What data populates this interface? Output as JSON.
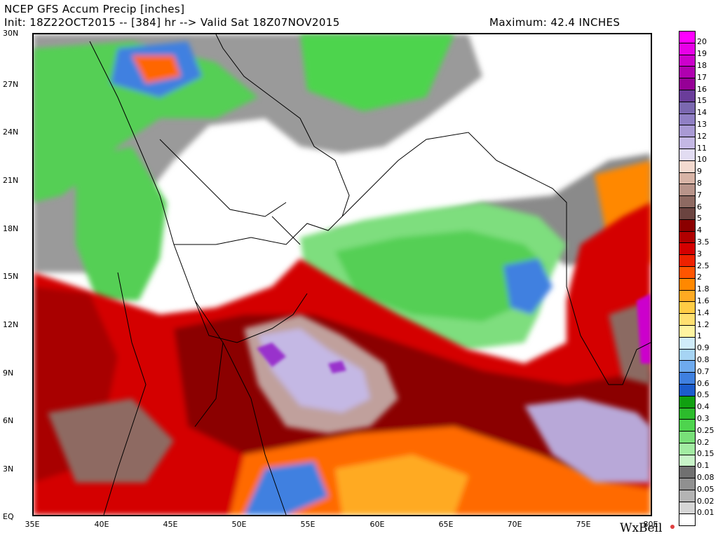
{
  "header": {
    "title": "NCEP GFS Accum Precip [inches]",
    "init_line": "Init: 18Z22OCT2015 -- [384] hr --> Valid Sat 18Z07NOV2015",
    "max_line": "Maximum: 42.4 INCHES"
  },
  "map": {
    "lat_labels": [
      "30N",
      "27N",
      "24N",
      "21N",
      "18N",
      "15N",
      "12N",
      "9N",
      "6N",
      "3N",
      "EQ"
    ],
    "lon_labels": [
      "35E",
      "40E",
      "45E",
      "50E",
      "55E",
      "60E",
      "65E",
      "70E",
      "75E",
      "80E"
    ]
  },
  "legend": {
    "levels": [
      {
        "label": "20",
        "color": "#ff00ff"
      },
      {
        "label": "19",
        "color": "#e800e8"
      },
      {
        "label": "18",
        "color": "#cc00cc"
      },
      {
        "label": "17",
        "color": "#b000b0"
      },
      {
        "label": "16",
        "color": "#960096"
      },
      {
        "label": "15",
        "color": "#6a3d9a"
      },
      {
        "label": "14",
        "color": "#7b68b0"
      },
      {
        "label": "13",
        "color": "#9080c4"
      },
      {
        "label": "12",
        "color": "#a99ad4"
      },
      {
        "label": "11",
        "color": "#c4b8e4"
      },
      {
        "label": "10",
        "color": "#e2dcf2"
      },
      {
        "label": "9",
        "color": "#f3dad0"
      },
      {
        "label": "8",
        "color": "#d8b4a6"
      },
      {
        "label": "7",
        "color": "#b8948a"
      },
      {
        "label": "6",
        "color": "#8e6a62"
      },
      {
        "label": "5",
        "color": "#6b4440"
      },
      {
        "label": "4",
        "color": "#8b0000"
      },
      {
        "label": "3.5",
        "color": "#b00000"
      },
      {
        "label": "3",
        "color": "#d40000"
      },
      {
        "label": "2.5",
        "color": "#ee2200"
      },
      {
        "label": "2",
        "color": "#ff5500"
      },
      {
        "label": "1.8",
        "color": "#ff8800"
      },
      {
        "label": "1.6",
        "color": "#ffaa22"
      },
      {
        "label": "1.4",
        "color": "#ffcc44"
      },
      {
        "label": "1.2",
        "color": "#ffe070"
      },
      {
        "label": "1",
        "color": "#fff4a0"
      },
      {
        "label": "0.9",
        "color": "#d0ecfa"
      },
      {
        "label": "0.8",
        "color": "#a6d4f4"
      },
      {
        "label": "0.7",
        "color": "#6eaaee"
      },
      {
        "label": "0.6",
        "color": "#3f80e0"
      },
      {
        "label": "0.5",
        "color": "#1c5ccc"
      },
      {
        "label": "0.4",
        "color": "#10a010"
      },
      {
        "label": "0.3",
        "color": "#2cbc2c"
      },
      {
        "label": "0.25",
        "color": "#4ed44e"
      },
      {
        "label": "0.2",
        "color": "#78e078"
      },
      {
        "label": "0.15",
        "color": "#a2eca2"
      },
      {
        "label": "0.1",
        "color": "#c8f4c8"
      },
      {
        "label": "0.08",
        "color": "#707070"
      },
      {
        "label": "0.05",
        "color": "#909090"
      },
      {
        "label": "0.02",
        "color": "#b4b4b4"
      },
      {
        "label": "0.01",
        "color": "#d6d6d6"
      }
    ],
    "bottom_color": "#ffffff",
    "bottom_label": ""
  },
  "branding": {
    "text": "WxBell"
  }
}
